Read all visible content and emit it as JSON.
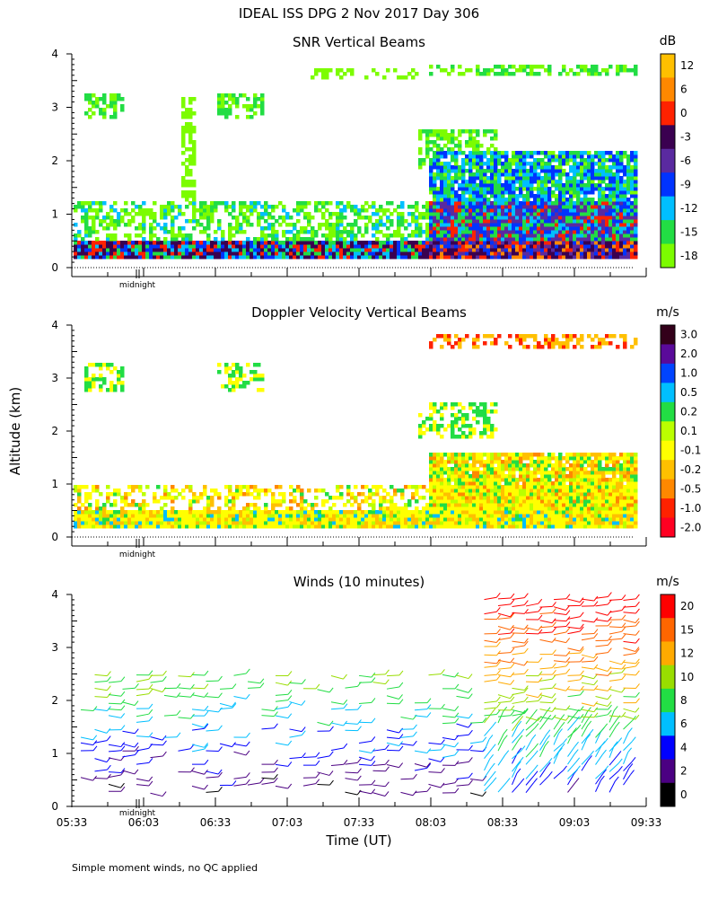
{
  "header": {
    "title": "IDEAL ISS DPG    2 Nov 2017 Day 306"
  },
  "y_axis_label": "Altitude (km)",
  "x_axis": {
    "label": "Time (UT)",
    "ticks": [
      "05:33",
      "06:03",
      "06:33",
      "07:03",
      "07:33",
      "08:03",
      "08:33",
      "09:03",
      "09:33"
    ],
    "midnight_label": "midnight"
  },
  "footer": {
    "note": "Simple moment winds, no QC applied"
  },
  "colors": {
    "white": "#ffffff",
    "black": "#000000",
    "lime": "#7cfc00",
    "green": "#22dd44",
    "cyan": "#00bfff",
    "blue": "#0000ff",
    "purple": "#4b0082",
    "darkpurple": "#3a0050",
    "red": "#ff2200",
    "orange": "#ff8800",
    "gold": "#ffc000",
    "yellow": "#ffff00"
  },
  "chart_data": [
    {
      "type": "heatmap",
      "title": "SNR Vertical Beams",
      "colorbar": {
        "unit": "dB",
        "labels": [
          "12",
          "6",
          "0",
          "-3",
          "-6",
          "-9",
          "-12",
          "-15",
          "-18"
        ],
        "colors": [
          "#ffc000",
          "#ff8800",
          "#ff2200",
          "#3a0050",
          "#5a2aa0",
          "#0033ff",
          "#00bfff",
          "#22dd44",
          "#7cfc00"
        ]
      },
      "ylim": [
        0,
        4
      ],
      "yticks": [
        "0",
        "1",
        "2",
        "3",
        "4"
      ],
      "xlim": [
        "05:33",
        "09:33"
      ]
    },
    {
      "type": "heatmap",
      "title": "Doppler Velocity Vertical Beams",
      "colorbar": {
        "unit": "m/s",
        "labels": [
          "3.0",
          "2.0",
          "1.0",
          "0.5",
          "0.2",
          "0.1",
          "-0.1",
          "-0.2",
          "-0.5",
          "-1.0",
          "-2.0"
        ],
        "colors": [
          "#33001a",
          "#5a0a9a",
          "#0044ff",
          "#00bfff",
          "#22dd44",
          "#bbff00",
          "#ffff00",
          "#ffc000",
          "#ff8800",
          "#ff2200",
          "#ff0022"
        ]
      },
      "ylim": [
        0,
        4
      ],
      "yticks": [
        "0",
        "1",
        "2",
        "3",
        "4"
      ],
      "xlim": [
        "05:33",
        "09:33"
      ]
    },
    {
      "type": "scatter",
      "title": "Winds (10 minutes)",
      "colorbar": {
        "unit": "m/s",
        "labels": [
          "20",
          "15",
          "12",
          "10",
          "8",
          "6",
          "4",
          "2",
          "0"
        ],
        "colors": [
          "#ff0000",
          "#ff6600",
          "#ffaa00",
          "#99dd00",
          "#22dd44",
          "#00bfff",
          "#0000ff",
          "#4b0082",
          "#000000"
        ]
      },
      "ylim": [
        0,
        4
      ],
      "yticks": [
        "0",
        "1",
        "2",
        "3",
        "4"
      ],
      "xlim": [
        "05:33",
        "09:33"
      ]
    }
  ]
}
